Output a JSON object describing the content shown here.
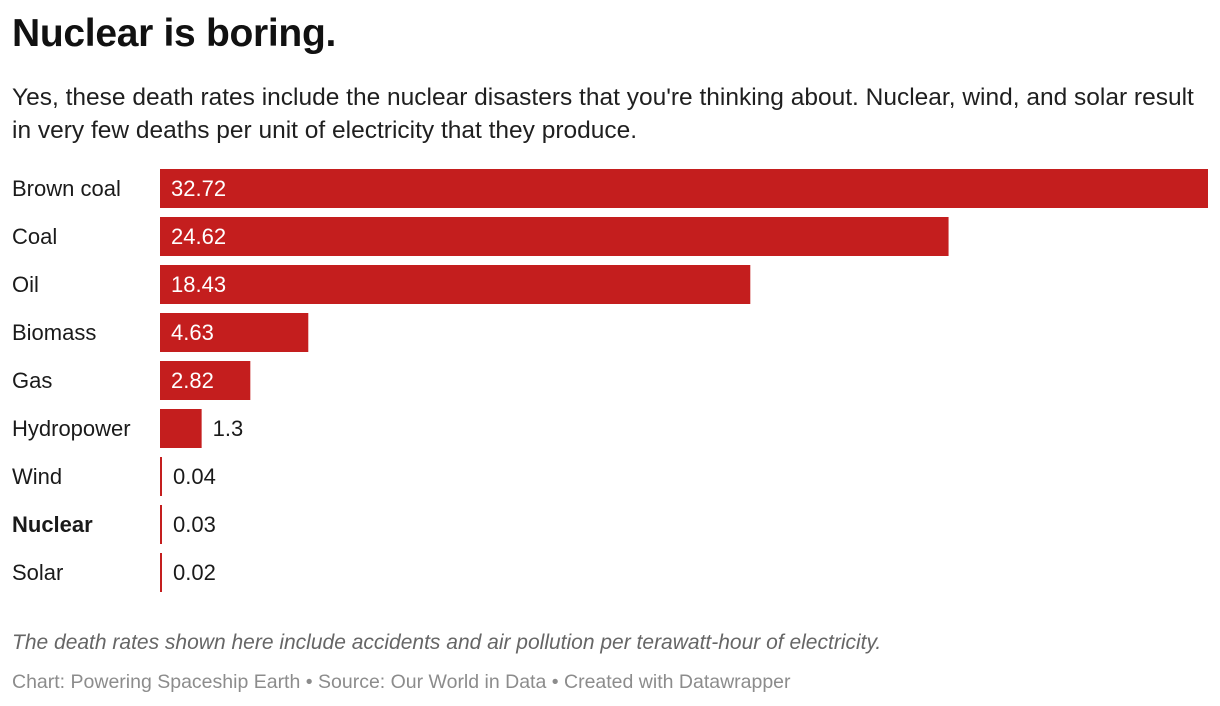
{
  "title": "Nuclear is boring.",
  "subtitle": "Yes, these death rates include the nuclear disasters that you're thinking about. Nuclear, wind, and solar result in very few deaths per unit of electricity that they produce.",
  "note": "The death rates shown here include accidents and air pollution per terawatt-hour of electricity.",
  "footer": {
    "chart_credit": "Chart: Powering Spaceship Earth",
    "source": "Source: Our World in Data",
    "tool": "Created with Datawrapper",
    "separator": "•"
  },
  "colors": {
    "bar": "#c41e1e",
    "label_inside": "#ffffff",
    "label_outside": "#1a1a1a",
    "category_text": "#1a1a1a"
  },
  "chart_data": {
    "type": "bar",
    "orientation": "horizontal",
    "title": "Nuclear is boring.",
    "xlabel": "",
    "ylabel": "",
    "unit": "deaths per terawatt-hour of electricity",
    "xlim": [
      0,
      32.72
    ],
    "grid": false,
    "legend": "none",
    "highlighted_category": "Nuclear",
    "categories": [
      "Brown coal",
      "Coal",
      "Oil",
      "Biomass",
      "Gas",
      "Hydropower",
      "Wind",
      "Nuclear",
      "Solar"
    ],
    "values": [
      32.72,
      24.62,
      18.43,
      4.63,
      2.82,
      1.3,
      0.04,
      0.03,
      0.02
    ],
    "value_labels": [
      "32.72",
      "24.62",
      "18.43",
      "4.63",
      "2.82",
      "1.3",
      "0.04",
      "0.03",
      "0.02"
    ]
  }
}
